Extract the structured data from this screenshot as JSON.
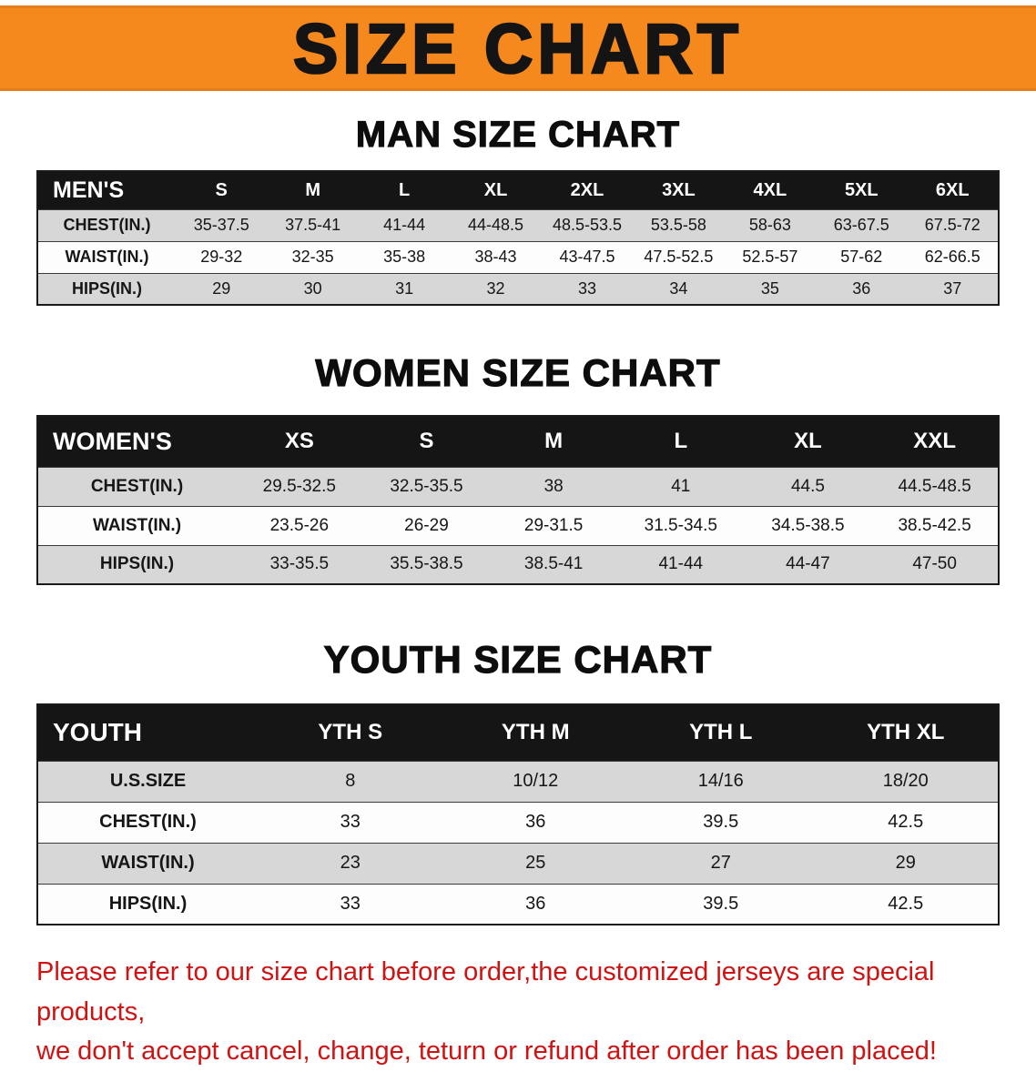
{
  "banner": {
    "title": "SIZE CHART"
  },
  "chart_data": [
    {
      "type": "table",
      "title": "MAN SIZE CHART",
      "header": [
        "MEN'S",
        "S",
        "M",
        "L",
        "XL",
        "2XL",
        "3XL",
        "4XL",
        "5XL",
        "6XL"
      ],
      "rows": [
        [
          "CHEST(IN.)",
          "35-37.5",
          "37.5-41",
          "41-44",
          "44-48.5",
          "48.5-53.5",
          "53.5-58",
          "58-63",
          "63-67.5",
          "67.5-72"
        ],
        [
          "WAIST(IN.)",
          "29-32",
          "32-35",
          "35-38",
          "38-43",
          "43-47.5",
          "47.5-52.5",
          "52.5-57",
          "57-62",
          "62-66.5"
        ],
        [
          "HIPS(IN.)",
          "29",
          "30",
          "31",
          "32",
          "33",
          "34",
          "35",
          "36",
          "37"
        ]
      ]
    },
    {
      "type": "table",
      "title": "WOMEN SIZE CHART",
      "header": [
        "WOMEN'S",
        "XS",
        "S",
        "M",
        "L",
        "XL",
        "XXL"
      ],
      "rows": [
        [
          "CHEST(IN.)",
          "29.5-32.5",
          "32.5-35.5",
          "38",
          "41",
          "44.5",
          "44.5-48.5"
        ],
        [
          "WAIST(IN.)",
          "23.5-26",
          "26-29",
          "29-31.5",
          "31.5-34.5",
          "34.5-38.5",
          "38.5-42.5"
        ],
        [
          "HIPS(IN.)",
          "33-35.5",
          "35.5-38.5",
          "38.5-41",
          "41-44",
          "44-47",
          "47-50"
        ]
      ]
    },
    {
      "type": "table",
      "title": "YOUTH SIZE CHART",
      "header": [
        "YOUTH",
        "YTH S",
        "YTH M",
        "YTH L",
        "YTH XL"
      ],
      "rows": [
        [
          "U.S.SIZE",
          "8",
          "10/12",
          "14/16",
          "18/20"
        ],
        [
          "CHEST(IN.)",
          "33",
          "36",
          "39.5",
          "42.5"
        ],
        [
          "WAIST(IN.)",
          "23",
          "25",
          "27",
          "29"
        ],
        [
          "HIPS(IN.)",
          "33",
          "36",
          "39.5",
          "42.5"
        ]
      ]
    }
  ],
  "footer": {
    "line1": "Please refer to our size chart before order,the customized jerseys are special products,",
    "line2": "we don't accept cancel, change, teturn or refund after order has been placed!"
  },
  "colors": {
    "banner_orange": "#F6891E",
    "header_black": "#151515",
    "row_gray": "#D7D7D7",
    "disclaimer_red": "#D01312"
  }
}
